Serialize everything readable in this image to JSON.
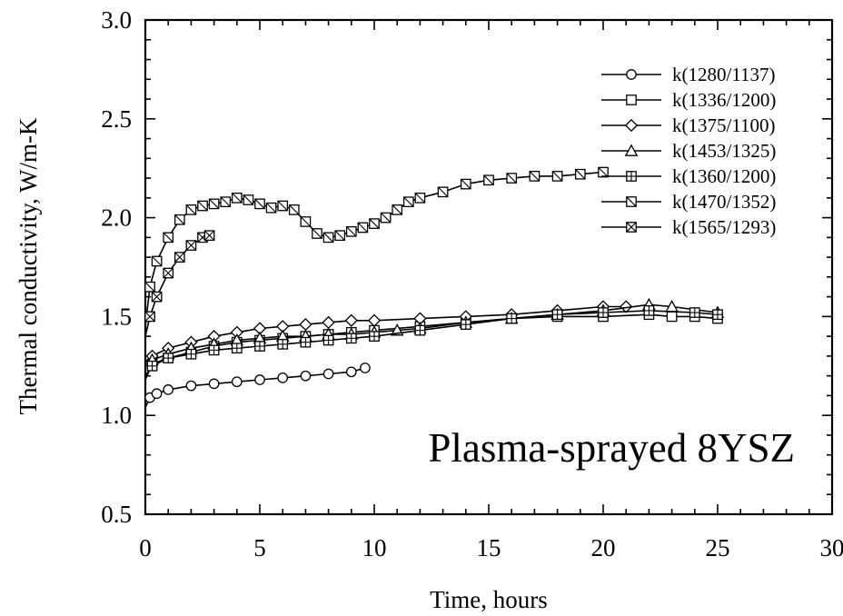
{
  "chart_data": {
    "type": "line",
    "title": "",
    "annotation": "Plasma-sprayed 8YSZ",
    "xlabel": "Time, hours",
    "ylabel": "Thermal conductivity,  W/m-K",
    "xlim": [
      0,
      30
    ],
    "ylim": [
      0.5,
      3.0
    ],
    "x_ticks": [
      0,
      5,
      10,
      15,
      20,
      25,
      30
    ],
    "x_tick_labels": [
      "0",
      "5",
      "10",
      "15",
      "20",
      "25",
      "30"
    ],
    "y_ticks": [
      0.5,
      1.0,
      1.5,
      2.0,
      2.5,
      3.0
    ],
    "y_tick_labels": [
      "0.5",
      "1.0",
      "1.5",
      "2.0",
      "2.5",
      "3.0"
    ],
    "grid": false,
    "legend_position": "top-right",
    "series": [
      {
        "name": "k(1280/1137)",
        "marker": "circle",
        "x": [
          0,
          0.2,
          0.5,
          1,
          2,
          3,
          4,
          5,
          6,
          7,
          8,
          9,
          9.6
        ],
        "y": [
          1.04,
          1.09,
          1.11,
          1.13,
          1.15,
          1.16,
          1.17,
          1.18,
          1.19,
          1.2,
          1.21,
          1.22,
          1.24
        ]
      },
      {
        "name": "k(1336/1200)",
        "marker": "square",
        "x": [
          0,
          0.3,
          1,
          2,
          3,
          4,
          5,
          6,
          7,
          8,
          9,
          10,
          12,
          14,
          16,
          18,
          20,
          22,
          23,
          24,
          25
        ],
        "y": [
          1.18,
          1.26,
          1.29,
          1.32,
          1.35,
          1.37,
          1.38,
          1.39,
          1.4,
          1.41,
          1.42,
          1.43,
          1.45,
          1.47,
          1.49,
          1.5,
          1.5,
          1.51,
          1.5,
          1.5,
          1.49
        ]
      },
      {
        "name": "k(1375/1100)",
        "marker": "diamond",
        "x": [
          0,
          0.3,
          1,
          2,
          3,
          4,
          5,
          6,
          7,
          8,
          9,
          10,
          12,
          14,
          16,
          18,
          20,
          21
        ],
        "y": [
          1.27,
          1.3,
          1.34,
          1.37,
          1.4,
          1.42,
          1.44,
          1.45,
          1.46,
          1.47,
          1.48,
          1.48,
          1.49,
          1.5,
          1.51,
          1.53,
          1.55,
          1.55
        ]
      },
      {
        "name": "k(1453/1325)",
        "marker": "triangle",
        "x": [
          0,
          0.3,
          1,
          2,
          3,
          4,
          5,
          6,
          7,
          8,
          9,
          10,
          11,
          12,
          14,
          16,
          18,
          20,
          22,
          23,
          25
        ],
        "y": [
          1.25,
          1.28,
          1.31,
          1.34,
          1.36,
          1.38,
          1.39,
          1.4,
          1.4,
          1.41,
          1.41,
          1.42,
          1.43,
          1.44,
          1.47,
          1.49,
          1.51,
          1.53,
          1.56,
          1.55,
          1.52
        ]
      },
      {
        "name": "k(1360/1200)",
        "marker": "square-plus",
        "x": [
          0,
          0.3,
          1,
          2,
          3,
          4,
          5,
          6,
          7,
          8,
          9,
          10,
          12,
          14,
          16,
          18,
          20,
          22,
          24,
          25
        ],
        "y": [
          1.2,
          1.25,
          1.29,
          1.31,
          1.33,
          1.34,
          1.35,
          1.36,
          1.37,
          1.38,
          1.39,
          1.4,
          1.43,
          1.46,
          1.49,
          1.51,
          1.52,
          1.53,
          1.52,
          1.51
        ]
      },
      {
        "name": "k(1470/1352)",
        "marker": "square-slash",
        "x": [
          0,
          0.2,
          0.5,
          1,
          1.5,
          2,
          2.5,
          3,
          3.5,
          4,
          4.5,
          5,
          5.5,
          6,
          6.5,
          7,
          7.5,
          8,
          8.5,
          9,
          9.5,
          10,
          10.5,
          11,
          11.5,
          12,
          13,
          14,
          15,
          16,
          17,
          18,
          19,
          20
        ],
        "y": [
          1.45,
          1.65,
          1.78,
          1.9,
          1.99,
          2.04,
          2.06,
          2.07,
          2.08,
          2.1,
          2.09,
          2.07,
          2.05,
          2.06,
          2.04,
          1.98,
          1.92,
          1.9,
          1.91,
          1.93,
          1.95,
          1.97,
          2.0,
          2.04,
          2.08,
          2.1,
          2.13,
          2.17,
          2.19,
          2.2,
          2.21,
          2.21,
          2.22,
          2.23
        ]
      },
      {
        "name": "k(1565/1293)",
        "marker": "square-x",
        "x": [
          0,
          0.2,
          0.5,
          1,
          1.5,
          2,
          2.5,
          2.8
        ],
        "y": [
          1.4,
          1.5,
          1.6,
          1.72,
          1.8,
          1.86,
          1.9,
          1.91
        ]
      }
    ]
  }
}
